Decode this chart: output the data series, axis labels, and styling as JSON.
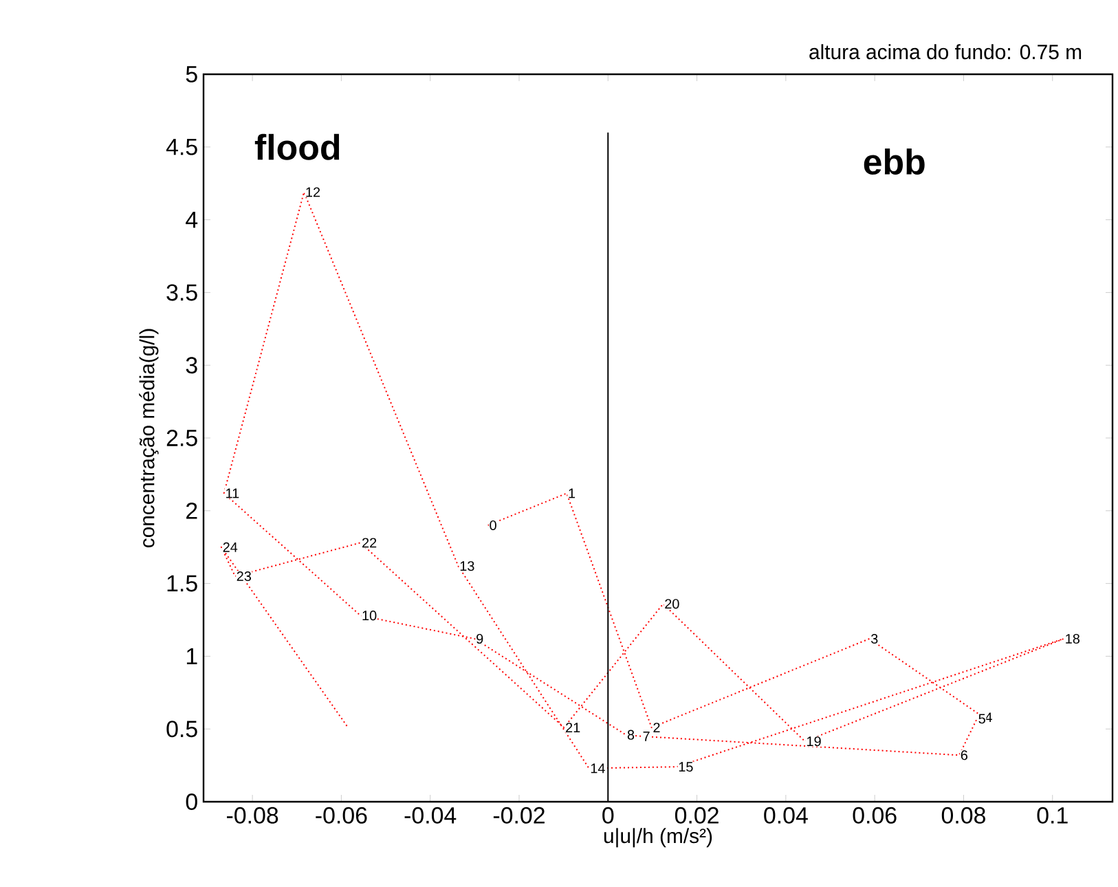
{
  "chart_data": {
    "type": "line",
    "title": "altura acima do fundo: 0.75 m",
    "xlabel": "u|u|/h (m/s²)",
    "ylabel": "concentração média(g/l)",
    "x": [
      -0.027,
      -0.0093,
      0.0098,
      0.0588,
      0.0845,
      0.083,
      0.079,
      0.0075,
      0.004,
      -0.03,
      -0.0557,
      -0.0864,
      -0.0684,
      -0.0337,
      -0.0043,
      0.0155,
      0.1025,
      0.0443,
      0.0124,
      -0.0099,
      -0.0557,
      -0.0839,
      -0.087,
      -0.0585
    ],
    "series": [
      {
        "color": "#ff0000",
        "values": [
          1.9,
          2.12,
          0.51,
          1.12,
          0.58,
          0.57,
          0.32,
          0.45,
          0.46,
          1.12,
          1.28,
          2.12,
          4.19,
          1.62,
          0.23,
          0.24,
          1.12,
          0.415,
          1.36,
          0.51,
          1.78,
          1.55,
          1.75,
          0.51
        ]
      }
    ],
    "xlim": [
      -0.091,
      0.1135
    ],
    "ylim": [
      0,
      5
    ],
    "xticks": [
      -0.08,
      -0.06,
      -0.04,
      -0.02,
      0,
      0.02,
      0.04,
      0.06,
      0.08,
      0.1
    ],
    "yticks": [
      0,
      0.5,
      1,
      1.5,
      2,
      2.5,
      3,
      3.5,
      4,
      4.5,
      5
    ],
    "grid": false,
    "marker": "none",
    "line_style": "dotted",
    "ref_lines": [
      {
        "axis": "x",
        "value": 0,
        "color": "#000000"
      }
    ],
    "annotations": [
      "flood",
      "ebb",
      {
        "text": "0",
        "x": -0.027,
        "y": 1.9
      },
      {
        "text": "1",
        "x": -0.0093,
        "y": 2.12
      },
      {
        "text": "2",
        "x": 0.0098,
        "y": 0.51
      },
      {
        "text": "3",
        "x": 0.0588,
        "y": 1.12
      },
      {
        "text": "4",
        "x": 0.0845,
        "y": 0.58
      },
      {
        "text": "5",
        "x": 0.083,
        "y": 0.57
      },
      {
        "text": "6",
        "x": 0.079,
        "y": 0.32
      },
      {
        "text": "7",
        "x": 0.0075,
        "y": 0.45
      },
      {
        "text": "8",
        "x": 0.004,
        "y": 0.46
      },
      {
        "text": "9",
        "x": -0.03,
        "y": 1.12
      },
      {
        "text": "10",
        "x": -0.0557,
        "y": 1.28
      },
      {
        "text": "11",
        "x": -0.0864,
        "y": 2.12
      },
      {
        "text": "12",
        "x": -0.0684,
        "y": 4.19
      },
      {
        "text": "13",
        "x": -0.0337,
        "y": 1.62
      },
      {
        "text": "14",
        "x": -0.0043,
        "y": 0.23
      },
      {
        "text": "15",
        "x": 0.0155,
        "y": 0.24
      },
      {
        "text": "18",
        "x": 0.1025,
        "y": 1.12
      },
      {
        "text": "19",
        "x": 0.0443,
        "y": 0.415
      },
      {
        "text": "20",
        "x": 0.0124,
        "y": 1.36
      },
      {
        "text": "21",
        "x": -0.0099,
        "y": 0.51
      },
      {
        "text": "22",
        "x": -0.0557,
        "y": 1.78
      },
      {
        "text": "23",
        "x": -0.0839,
        "y": 1.55
      },
      {
        "text": "24",
        "x": -0.087,
        "y": 1.75
      }
    ]
  }
}
